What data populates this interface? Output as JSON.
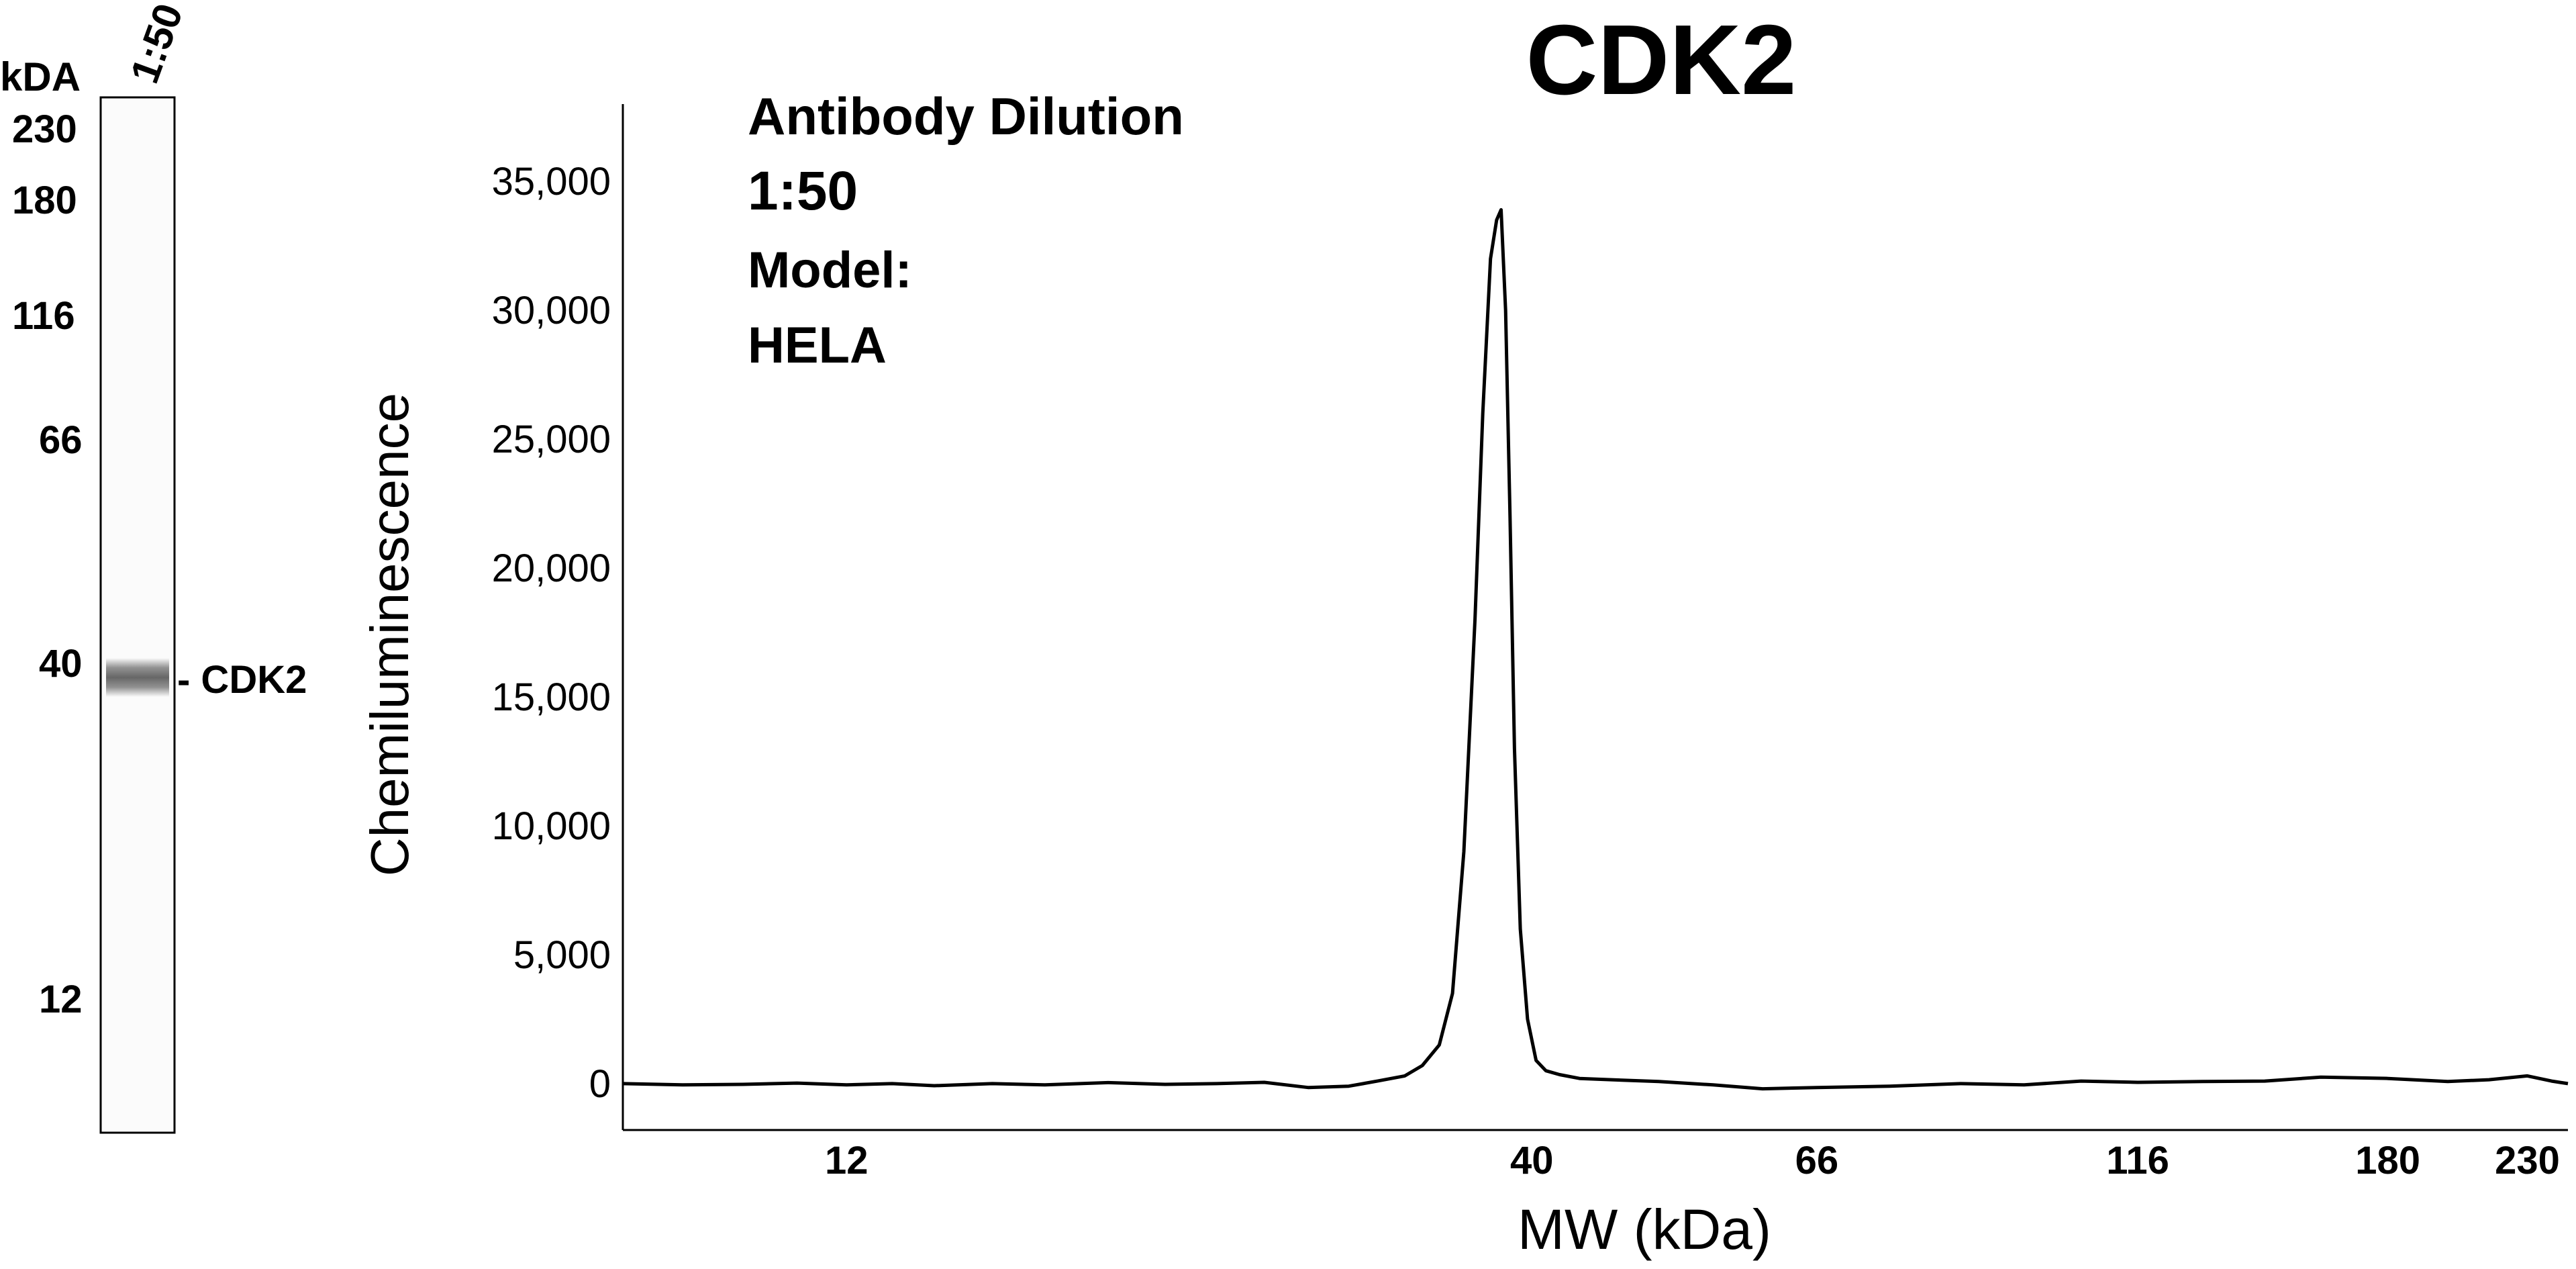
{
  "blot": {
    "unit_label": "kDA",
    "lane_label": "1:50",
    "markers": [
      "230",
      "180",
      "116",
      "66",
      "40",
      "12"
    ],
    "band_label": "- CDK2"
  },
  "info": {
    "line1": "Antibody Dilution",
    "line2": "1:50",
    "line3": "Model:",
    "line4": "HELA"
  },
  "chart_data": {
    "type": "line",
    "title": "CDK2",
    "xlabel": "MW (kDa)",
    "ylabel": "Chemiluminescence",
    "x_scale": "log",
    "x_ticks": [
      12,
      40,
      66,
      116,
      180,
      230
    ],
    "y_ticks": [
      0,
      5000,
      10000,
      15000,
      20000,
      25000,
      30000,
      35000
    ],
    "y_tick_labels": [
      "0",
      "5,000",
      "10,000",
      "15,000",
      "20,000",
      "25,000",
      "30,000",
      "35,000"
    ],
    "xlim": [
      8.1,
      247
    ],
    "ylim": [
      -1800,
      38000
    ],
    "grid": false,
    "series": [
      {
        "x": [
          8.1,
          9,
          10,
          11,
          12,
          13,
          14,
          15.5,
          17,
          19,
          21,
          23,
          25,
          27,
          29,
          30.5,
          32,
          33,
          34,
          34.8,
          35.5,
          36.2,
          36.7,
          37.2,
          37.6,
          37.9,
          38.2,
          38.5,
          38.8,
          39.2,
          39.7,
          40.3,
          41,
          42,
          43.5,
          46,
          50,
          55,
          60,
          66,
          75,
          85,
          95,
          105,
          116,
          130,
          145,
          160,
          180,
          200,
          215,
          230,
          240,
          247
        ],
        "values": [
          0,
          -50,
          -30,
          20,
          -50,
          0,
          -80,
          0,
          -50,
          40,
          -30,
          0,
          50,
          -150,
          -100,
          100,
          300,
          700,
          1500,
          3500,
          9000,
          18000,
          26000,
          32000,
          33500,
          33900,
          30000,
          22000,
          13000,
          6000,
          2500,
          900,
          500,
          350,
          200,
          150,
          80,
          -50,
          -200,
          -150,
          -100,
          0,
          -50,
          100,
          50,
          80,
          100,
          250,
          200,
          80,
          150,
          300,
          100,
          0
        ]
      }
    ]
  }
}
